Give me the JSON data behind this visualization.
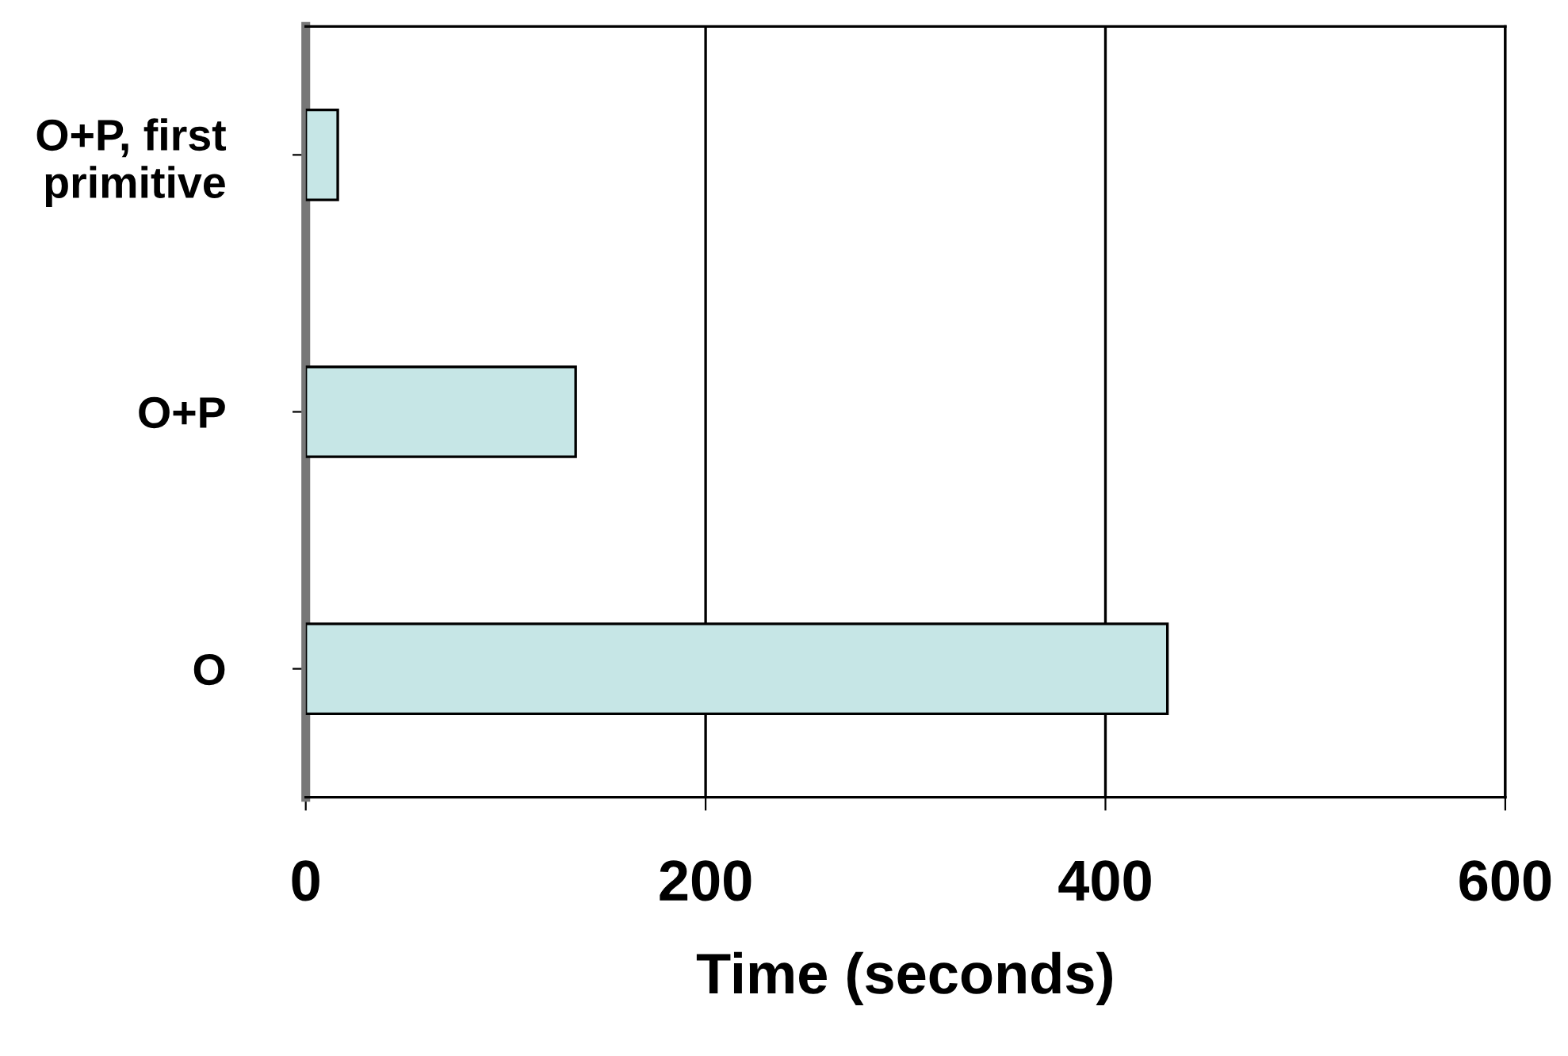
{
  "chart_data": {
    "type": "bar",
    "orientation": "horizontal",
    "xlabel": "Time (seconds)",
    "categories": [
      "O+P, first\nprimitive",
      "O+P",
      "O"
    ],
    "values": [
      16,
      135,
      431
    ],
    "color": "#c6e6e6",
    "xlim": [
      0,
      600
    ],
    "xticks": [
      0,
      200,
      400,
      600
    ],
    "grid": "x",
    "legend": false
  }
}
